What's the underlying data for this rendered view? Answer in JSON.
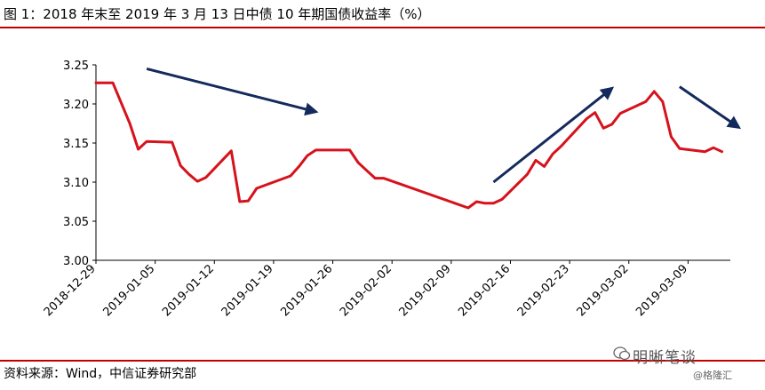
{
  "title": "图 1：2018 年末至 2019 年 3 月 13 日中债 10 年期国债收益率（%）",
  "source": "资料来源：Wind，中信证券研究部",
  "watermark": "明晰笔谈",
  "watermark_sub": "@格隆汇",
  "colors": {
    "line": "#d6121d",
    "arrow": "#142a5c",
    "rule": "#c00000"
  },
  "chart_data": {
    "type": "line",
    "ylim": [
      3.0,
      3.25
    ],
    "yticks": [
      "3.00",
      "3.05",
      "3.10",
      "3.15",
      "3.20",
      "3.25"
    ],
    "xticks": [
      "2018-12-29",
      "2019-01-05",
      "2019-01-12",
      "2019-01-19",
      "2019-01-26",
      "2019-02-02",
      "2019-02-09",
      "2019-02-16",
      "2019-02-23",
      "2019-03-02",
      "2019-03-09"
    ],
    "grid": false,
    "series": [
      {
        "name": "",
        "x": [
          "2018-12-29",
          "2018-12-31",
          "2019-01-02",
          "2019-01-03",
          "2019-01-04",
          "2019-01-07",
          "2019-01-08",
          "2019-01-09",
          "2019-01-10",
          "2019-01-11",
          "2019-01-14",
          "2019-01-15",
          "2019-01-16",
          "2019-01-17",
          "2019-01-18",
          "2019-01-21",
          "2019-01-22",
          "2019-01-23",
          "2019-01-24",
          "2019-01-25",
          "2019-01-28",
          "2019-01-29",
          "2019-01-30",
          "2019-01-31",
          "2019-02-01",
          "2019-02-11",
          "2019-02-12",
          "2019-02-13",
          "2019-02-14",
          "2019-02-15",
          "2019-02-18",
          "2019-02-19",
          "2019-02-20",
          "2019-02-21",
          "2019-02-22",
          "2019-02-25",
          "2019-02-26",
          "2019-02-27",
          "2019-02-28",
          "2019-03-01",
          "2019-03-04",
          "2019-03-05",
          "2019-03-06",
          "2019-03-07",
          "2019-03-08",
          "2019-03-11",
          "2019-03-12",
          "2019-03-13"
        ],
        "values": [
          3.227,
          3.227,
          3.175,
          3.142,
          3.152,
          3.151,
          3.121,
          3.11,
          3.101,
          3.106,
          3.14,
          3.075,
          3.076,
          3.092,
          3.096,
          3.108,
          3.12,
          3.134,
          3.141,
          3.141,
          3.141,
          3.125,
          3.115,
          3.105,
          3.105,
          3.067,
          3.075,
          3.073,
          3.073,
          3.078,
          3.11,
          3.128,
          3.12,
          3.136,
          3.146,
          3.181,
          3.189,
          3.169,
          3.174,
          3.188,
          3.203,
          3.216,
          3.203,
          3.158,
          3.143,
          3.139,
          3.144,
          3.139
        ]
      }
    ],
    "annotations": [
      {
        "type": "arrow",
        "direction": "down",
        "from": [
          "2019-01-04",
          3.245
        ],
        "to": [
          "2019-01-24",
          3.19
        ]
      },
      {
        "type": "arrow",
        "direction": "up",
        "from": [
          "2019-02-14",
          3.1
        ],
        "to": [
          "2019-02-28",
          3.22
        ]
      },
      {
        "type": "arrow",
        "direction": "down",
        "from": [
          "2019-03-08",
          3.222
        ],
        "to": [
          "2019-03-15",
          3.17
        ]
      }
    ]
  }
}
